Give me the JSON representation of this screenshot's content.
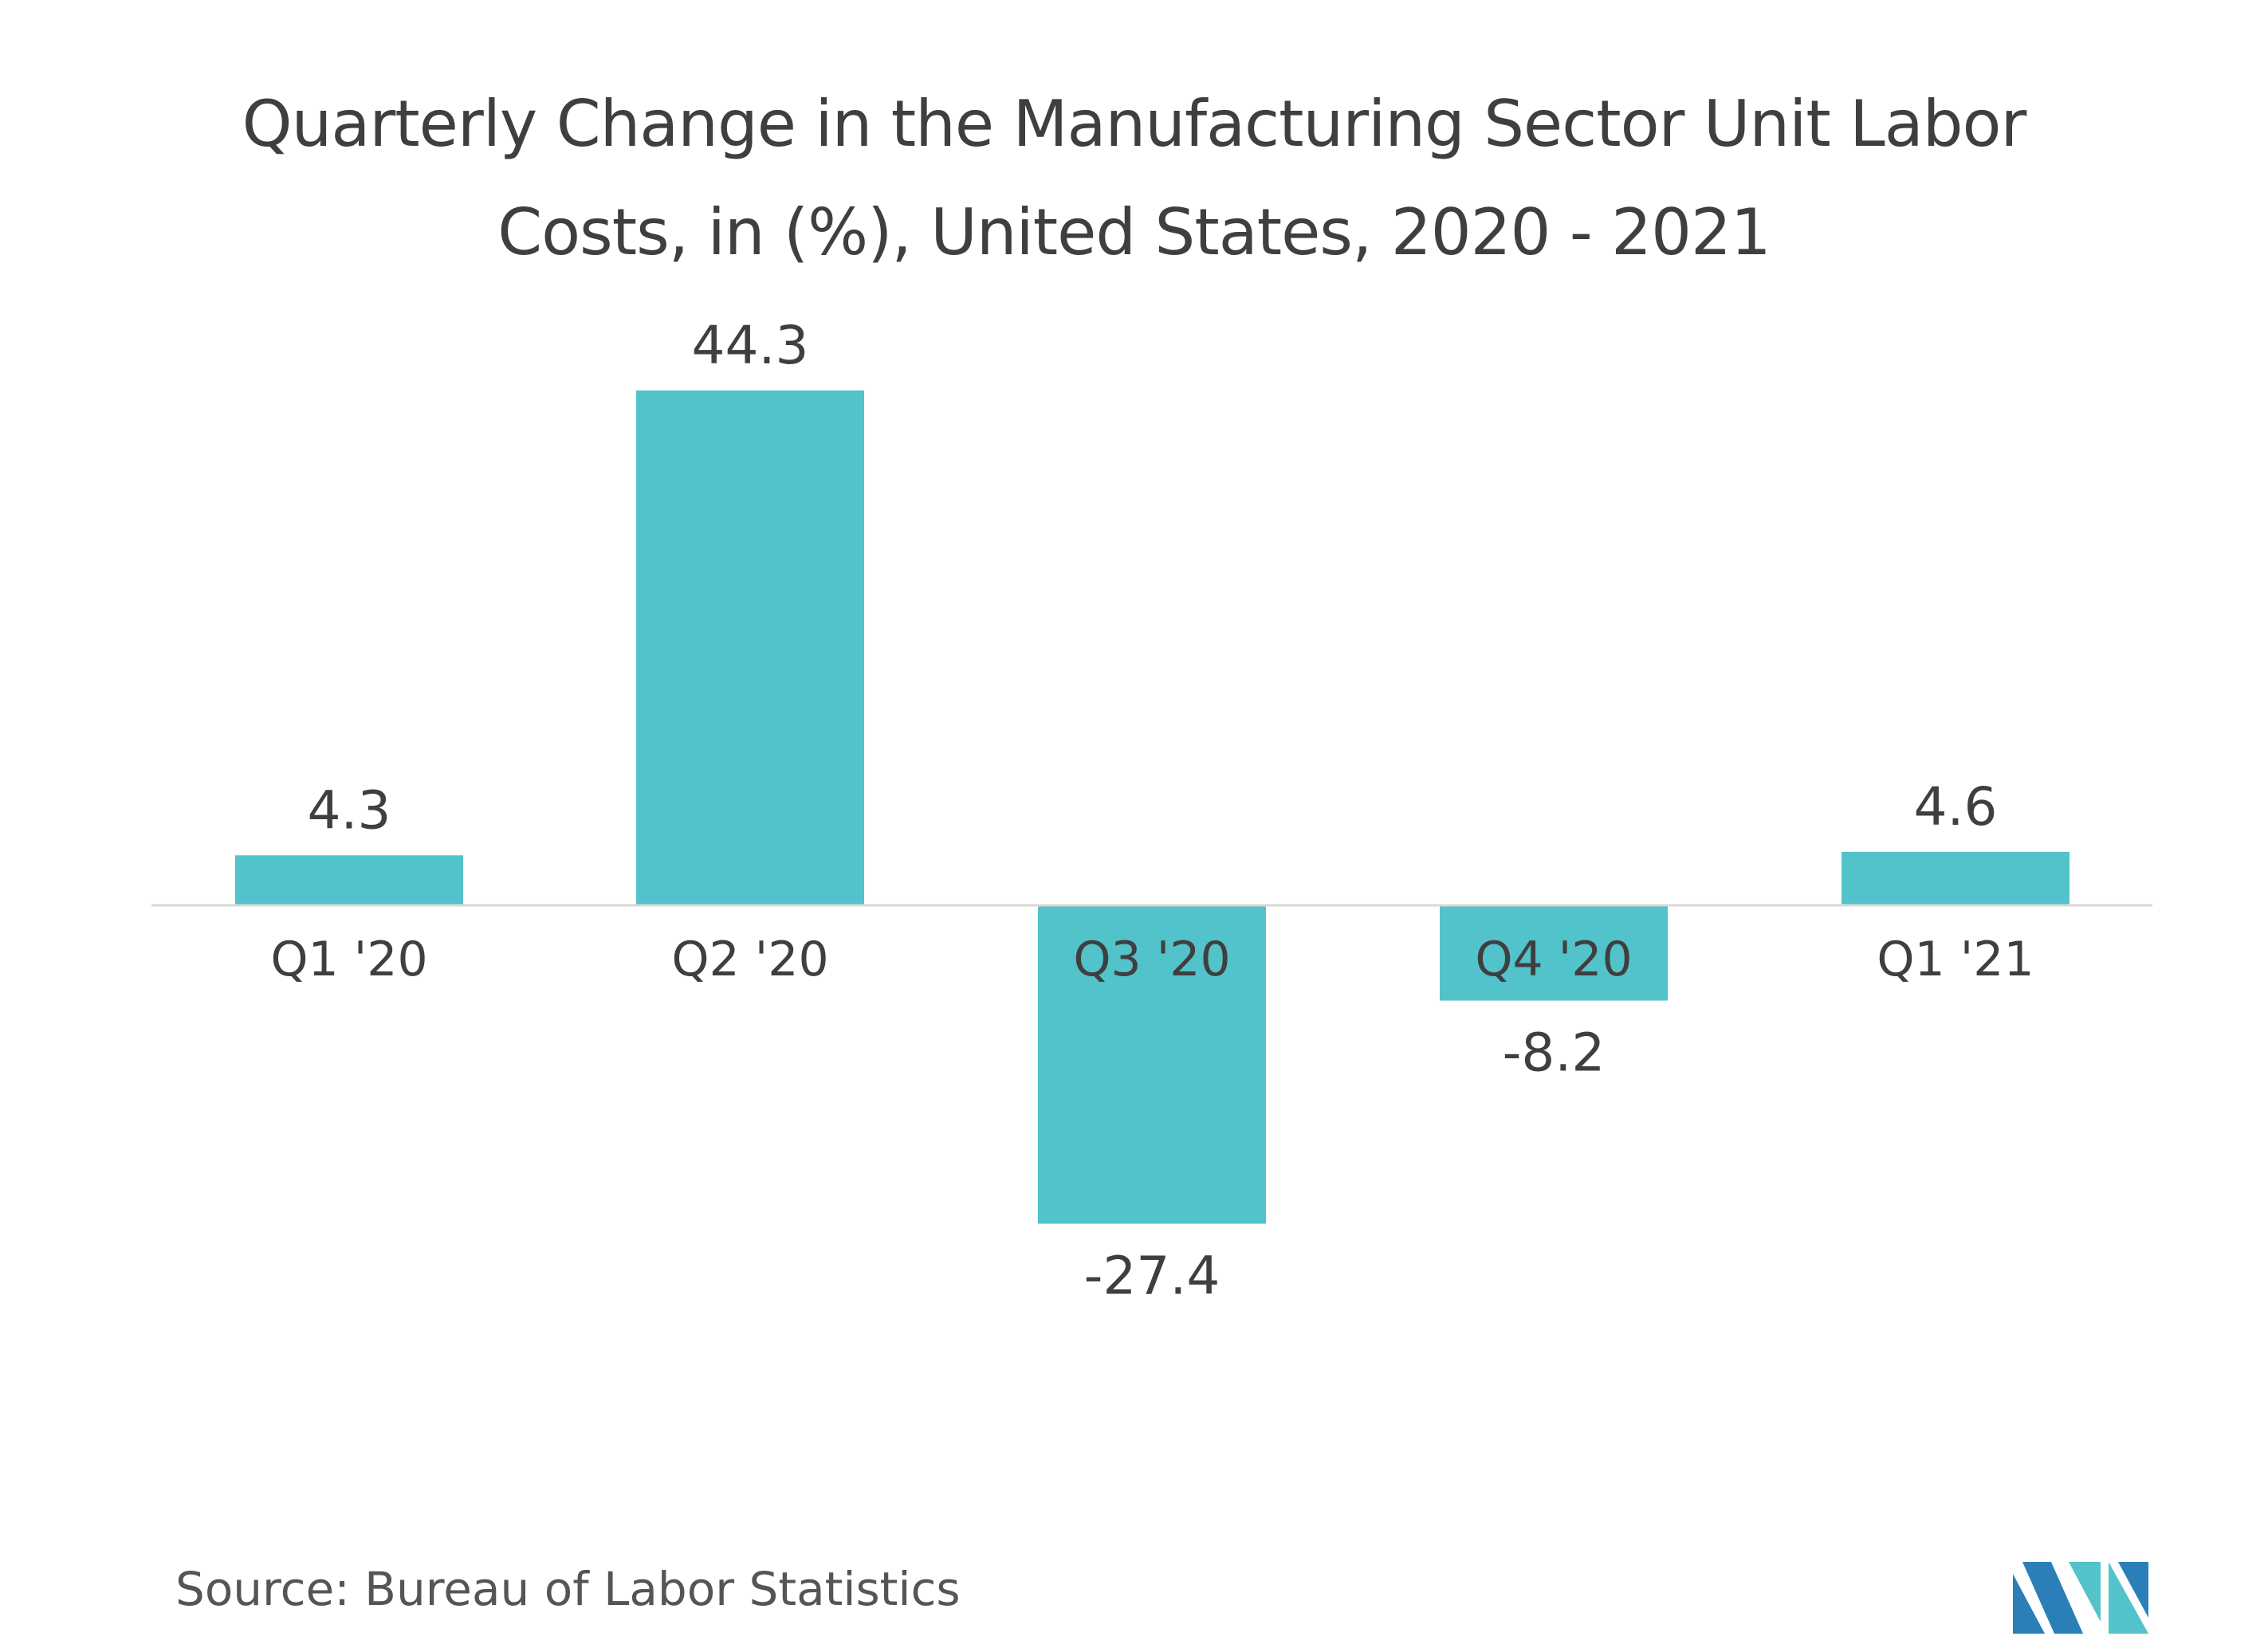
{
  "chart_data": {
    "type": "bar",
    "title_lines": [
      "Quarterly Change in the Manufacturing Sector Unit Labor",
      "Costs, in (%), United States, 2020 - 2021"
    ],
    "categories": [
      "Q1 '20",
      "Q2 '20",
      "Q3 '20",
      "Q4 '20",
      "Q1 '21"
    ],
    "values": [
      4.3,
      44.3,
      -27.4,
      -8.2,
      4.6
    ],
    "value_labels": [
      "4.3",
      "44.3",
      "-27.4",
      "-8.2",
      "4.6"
    ],
    "xlabel": "",
    "ylabel": "",
    "ylim": [
      -27.4,
      44.3
    ],
    "grid": false,
    "legend": "none",
    "bar_color": "#52c3ca",
    "axis_color": "#d9d9d9"
  },
  "source": "Source: Bureau of Labor Statistics",
  "logo": {
    "icon": "mordor-intelligence-logo-icon",
    "colors": [
      "#2a7fb8",
      "#52c3ca"
    ]
  }
}
